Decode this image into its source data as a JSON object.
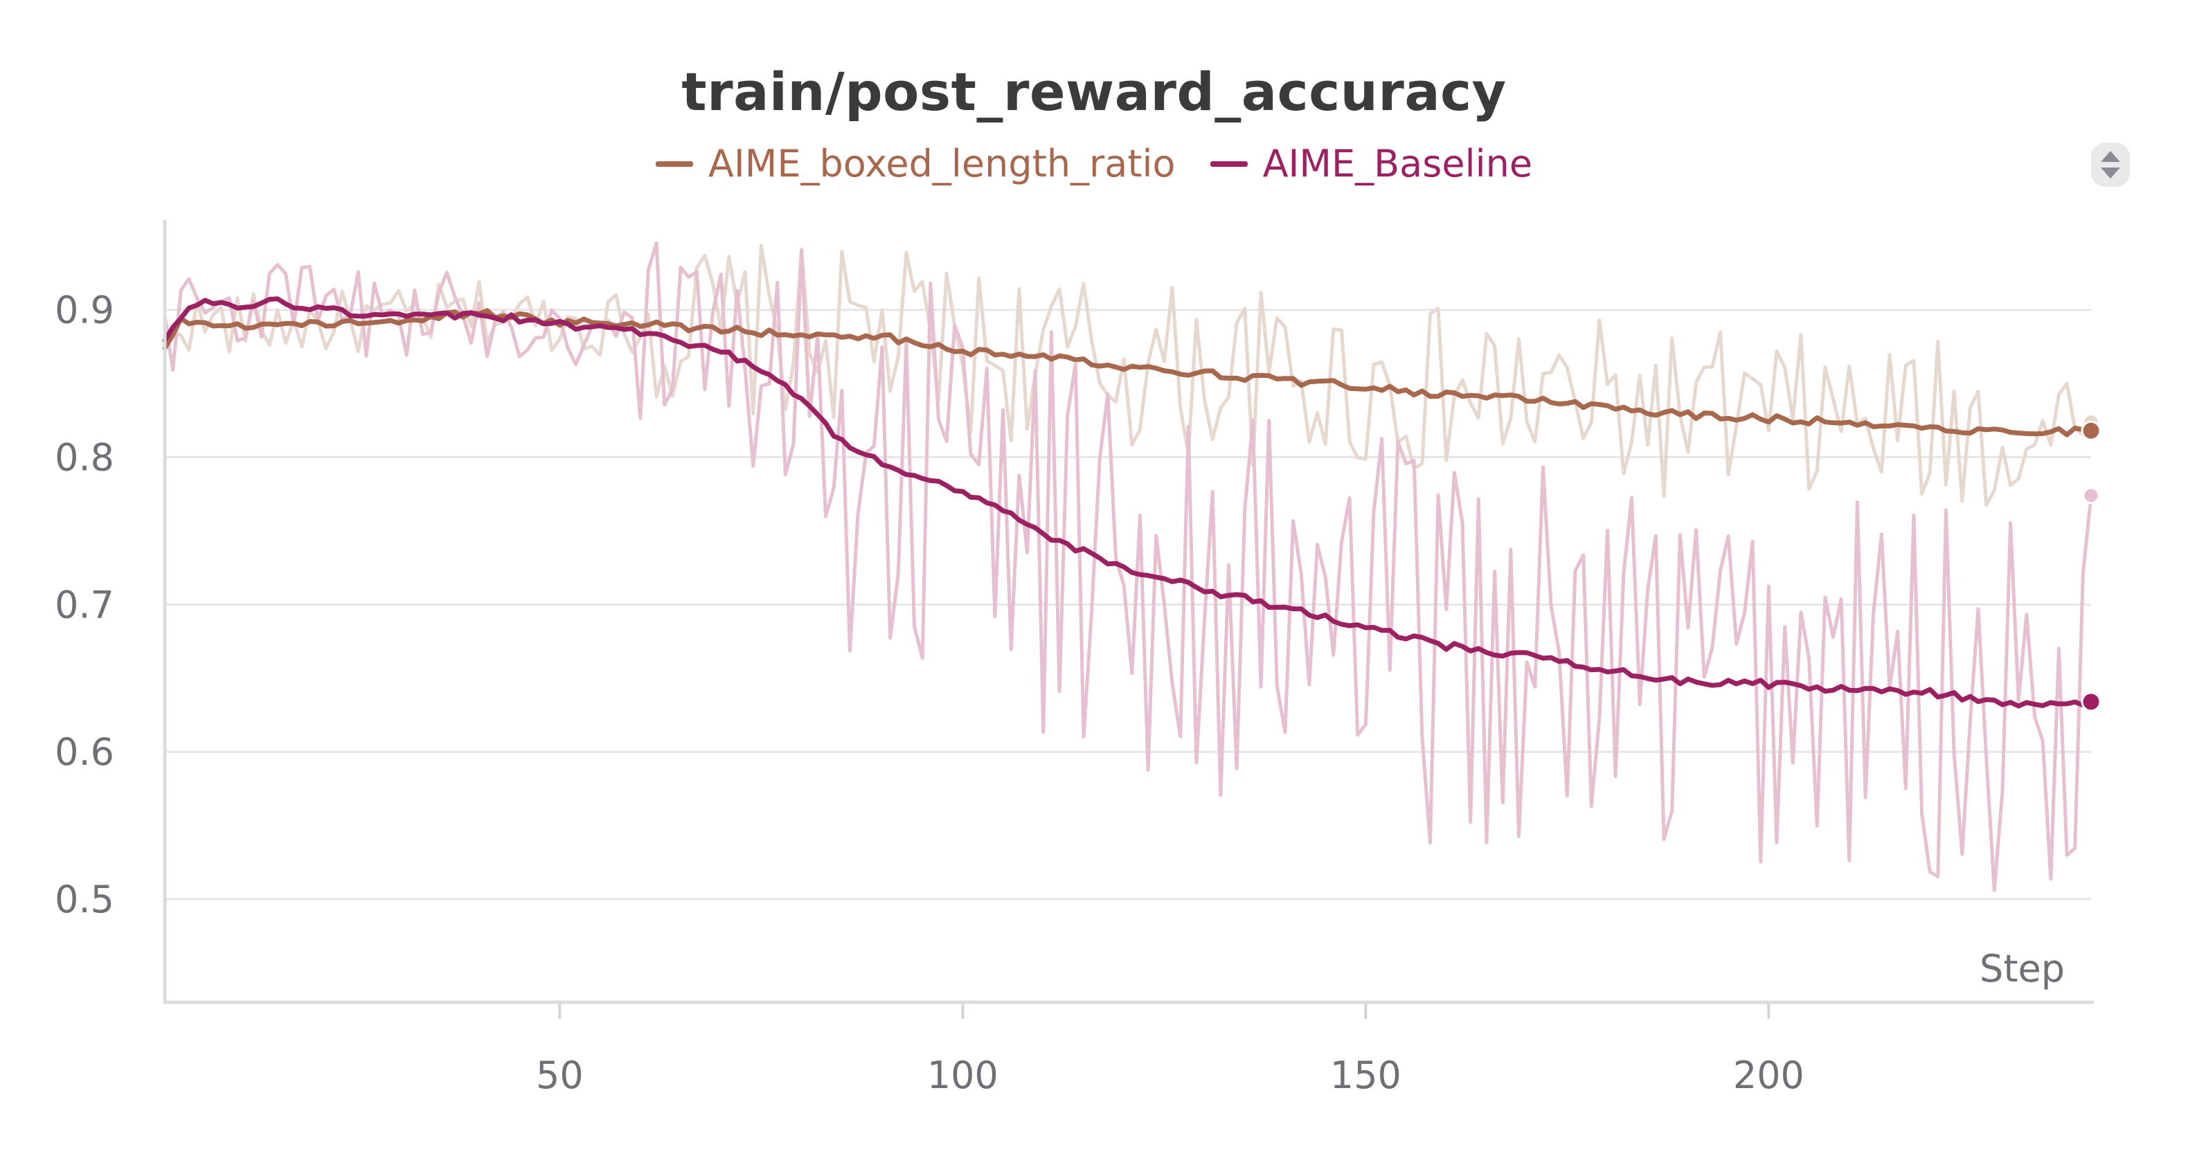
{
  "chart_data": {
    "type": "line",
    "title": "train/post_reward_accuracy",
    "xlabel": "Step",
    "ylabel": "",
    "xlim": [
      1,
      240
    ],
    "ylim": [
      0.43,
      0.96
    ],
    "x_ticks": [
      50,
      100,
      150,
      200
    ],
    "y_ticks": [
      0.5,
      0.6,
      0.7,
      0.8,
      0.9
    ],
    "x_tick_labels": [
      "50",
      "100",
      "150",
      "200"
    ],
    "y_tick_labels": [
      "0.5",
      "0.6",
      "0.7",
      "0.8",
      "0.9"
    ],
    "grid": true,
    "legend_position": "top-center",
    "series": [
      {
        "name": "AIME_boxed_length_ratio",
        "color": "#a8684d",
        "smoothed": {
          "x": [
            1,
            3,
            5,
            10,
            20,
            30,
            40,
            50,
            60,
            70,
            80,
            90,
            100,
            110,
            120,
            130,
            140,
            150,
            160,
            170,
            180,
            190,
            200,
            210,
            220,
            230,
            240
          ],
          "y": [
            0.875,
            0.895,
            0.89,
            0.89,
            0.89,
            0.893,
            0.898,
            0.892,
            0.89,
            0.887,
            0.883,
            0.882,
            0.872,
            0.868,
            0.862,
            0.857,
            0.852,
            0.848,
            0.842,
            0.84,
            0.833,
            0.829,
            0.826,
            0.824,
            0.82,
            0.817,
            0.818
          ]
        }
      },
      {
        "name": "AIME_Baseline",
        "color": "#9b2163",
        "smoothed": {
          "x": [
            1,
            3,
            5,
            10,
            15,
            20,
            30,
            40,
            50,
            60,
            70,
            75,
            80,
            85,
            90,
            95,
            100,
            105,
            110,
            120,
            130,
            140,
            150,
            160,
            170,
            180,
            190,
            200,
            210,
            220,
            230,
            240
          ],
          "y": [
            0.88,
            0.895,
            0.905,
            0.902,
            0.906,
            0.9,
            0.895,
            0.897,
            0.89,
            0.885,
            0.872,
            0.86,
            0.84,
            0.81,
            0.795,
            0.785,
            0.777,
            0.765,
            0.748,
            0.725,
            0.71,
            0.698,
            0.685,
            0.672,
            0.665,
            0.655,
            0.648,
            0.646,
            0.642,
            0.64,
            0.633,
            0.634
          ]
        },
        "raw_last": 0.774
      }
    ],
    "raw_series_last": [
      0.824,
      0.774
    ]
  },
  "icons": {
    "menu": "chevron-up-down-icon"
  }
}
